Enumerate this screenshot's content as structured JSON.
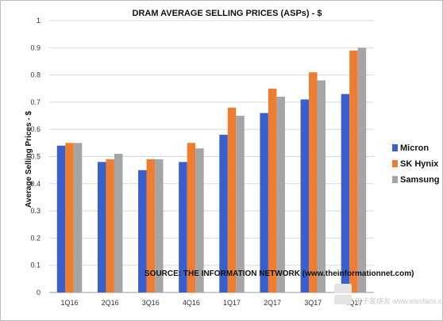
{
  "chart_data": {
    "type": "bar",
    "title": "DRAM AVERAGE SELLING PRICES (ASPs) - $",
    "ylabel": "Average Selling Prices - $",
    "xlabel": "",
    "categories": [
      "1Q16",
      "2Q16",
      "3Q16",
      "4Q16",
      "1Q17",
      "2Q17",
      "3Q17",
      "4Q17"
    ],
    "series": [
      {
        "name": "Micron",
        "color": "#3a5fcd",
        "values": [
          0.54,
          0.48,
          0.45,
          0.48,
          0.58,
          0.66,
          0.71,
          0.73
        ]
      },
      {
        "name": "SK Hynix",
        "color": "#ed7d31",
        "values": [
          0.55,
          0.49,
          0.49,
          0.55,
          0.68,
          0.75,
          0.81,
          0.89
        ]
      },
      {
        "name": "Samsung",
        "color": "#a5a5a5",
        "values": [
          0.55,
          0.51,
          0.49,
          0.53,
          0.65,
          0.72,
          0.78,
          0.9
        ]
      }
    ],
    "ylim": [
      0,
      1
    ],
    "yticks": [
      "0",
      "0.1",
      "0.2",
      "0.3",
      "0.4",
      "0.5",
      "0.6",
      "0.7",
      "0.8",
      "0.9",
      "1"
    ],
    "grid": true,
    "legend": "right",
    "annotation": "SOURCE: THE INFORMATION NETWORK (www.theinformationnet.com)"
  },
  "watermark": {
    "text": "电子发烧友 www.elecfans.com"
  }
}
